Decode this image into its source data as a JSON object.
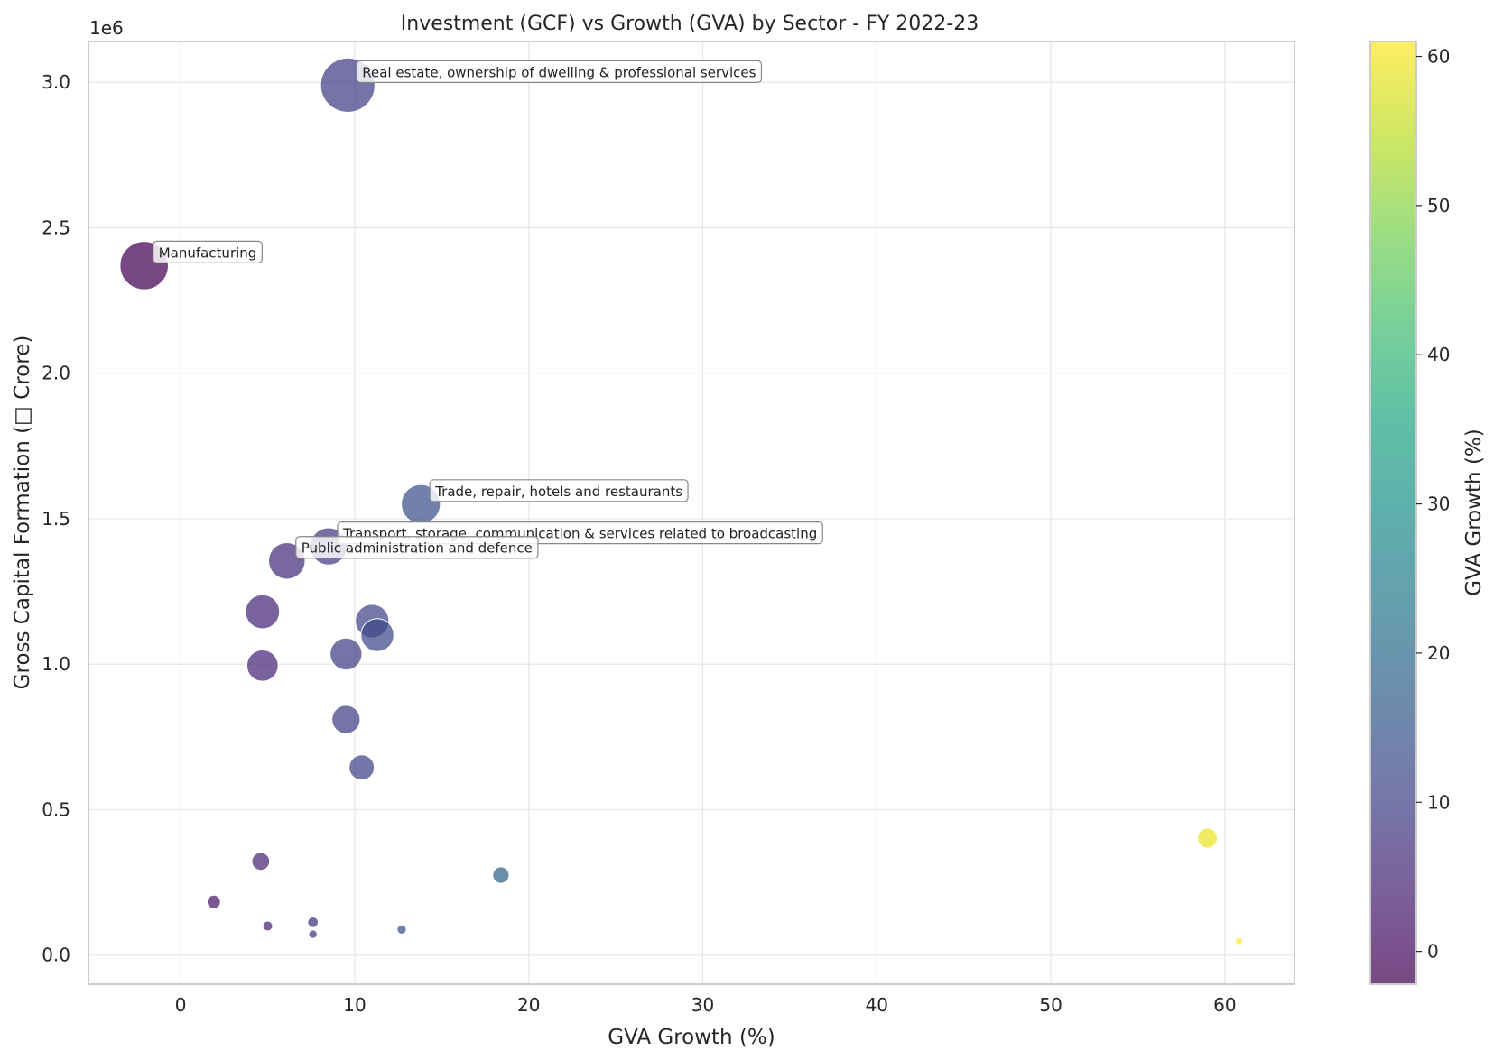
{
  "chart_data": {
    "type": "scatter",
    "title": "Investment (GCF) vs Growth (GVA) by Sector - FY 2022-23",
    "xlabel": "GVA Growth (%)",
    "ylabel": "Gross Capital Formation (□ Crore)",
    "y_offset_label": "1e6",
    "xlim": [
      -5.3,
      64
    ],
    "ylim": [
      -100000,
      3140000
    ],
    "x_ticks": [
      0,
      10,
      20,
      30,
      40,
      50,
      60
    ],
    "y_ticks": [
      0,
      500000,
      1000000,
      1500000,
      2000000,
      2500000,
      3000000
    ],
    "y_tick_labels": [
      "0.0",
      "0.5",
      "1.0",
      "1.5",
      "2.0",
      "2.5",
      "3.0"
    ],
    "grid": true,
    "colormap": "viridis",
    "colorbar": {
      "label": "GVA Growth (%)",
      "min": -2.2,
      "max": 61,
      "ticks": [
        0,
        10,
        20,
        30,
        40,
        50,
        60
      ]
    },
    "size_encodes": "Gross Capital Formation",
    "points": [
      {
        "x": 9.6,
        "y": 2990000,
        "label": "Real estate, ownership of dwelling & professional services"
      },
      {
        "x": -2.1,
        "y": 2370000,
        "label": "Manufacturing"
      },
      {
        "x": 13.8,
        "y": 1550000,
        "label": "Trade, repair, hotels and restaurants"
      },
      {
        "x": 8.5,
        "y": 1405000,
        "label": "Transport, storage, communication & services related to broadcasting"
      },
      {
        "x": 6.1,
        "y": 1355000,
        "label": "Public administration and defence"
      },
      {
        "x": 4.7,
        "y": 1180000,
        "label": ""
      },
      {
        "x": 11.0,
        "y": 1148000,
        "label": ""
      },
      {
        "x": 11.3,
        "y": 1100000,
        "label": ""
      },
      {
        "x": 9.5,
        "y": 1035000,
        "label": ""
      },
      {
        "x": 4.7,
        "y": 995000,
        "label": ""
      },
      {
        "x": 9.5,
        "y": 810000,
        "label": ""
      },
      {
        "x": 10.4,
        "y": 645000,
        "label": ""
      },
      {
        "x": 59.0,
        "y": 402000,
        "label": ""
      },
      {
        "x": 4.6,
        "y": 322000,
        "label": ""
      },
      {
        "x": 18.4,
        "y": 275000,
        "label": ""
      },
      {
        "x": 1.9,
        "y": 183000,
        "label": ""
      },
      {
        "x": 7.6,
        "y": 113000,
        "label": ""
      },
      {
        "x": 5.0,
        "y": 100000,
        "label": ""
      },
      {
        "x": 12.7,
        "y": 88000,
        "label": ""
      },
      {
        "x": 7.6,
        "y": 72000,
        "label": ""
      },
      {
        "x": 60.8,
        "y": 48000,
        "label": ""
      }
    ]
  }
}
